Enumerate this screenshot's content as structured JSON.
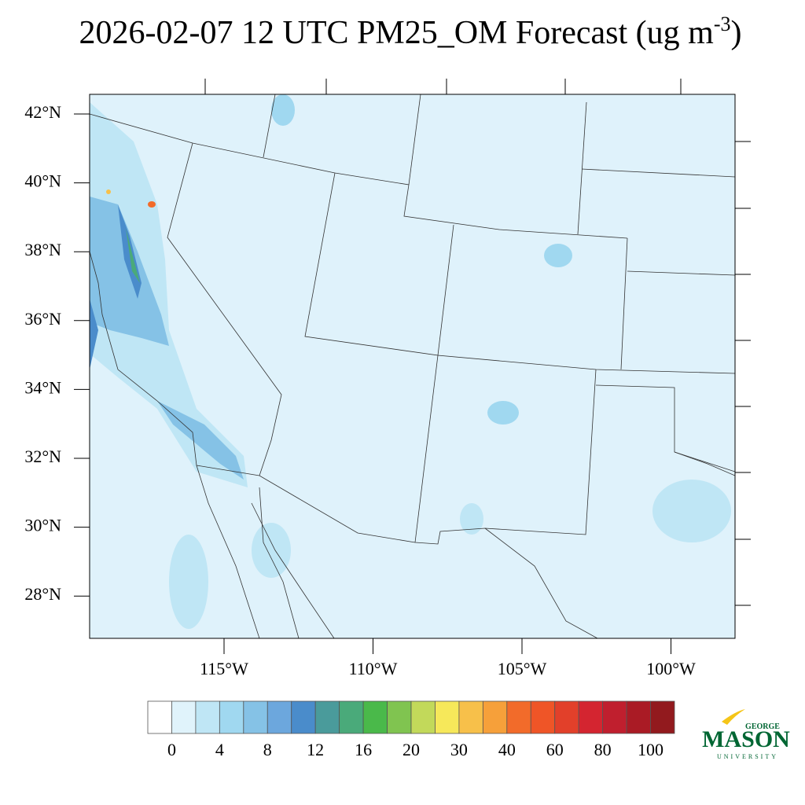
{
  "title": {
    "main": "2026-02-07 12 UTC PM25_OM Forecast (ug m",
    "superscript": "-3",
    "close": ")"
  },
  "map": {
    "lat_labels": [
      "42°N",
      "40°N",
      "38°N",
      "36°N",
      "34°N",
      "32°N",
      "30°N",
      "28°N"
    ],
    "lon_labels": [
      "115°W",
      "110°W",
      "105°W",
      "100°W"
    ]
  },
  "colorbar": {
    "colors": [
      "#ffffff",
      "#e0f3fb",
      "#bfe6f5",
      "#a0d8f0",
      "#85c2e6",
      "#6ca7dd",
      "#4a8ccb",
      "#4a9b9b",
      "#4aaa7a",
      "#4ab94a",
      "#80c450",
      "#c2d95a",
      "#f6e85a",
      "#f7c04a",
      "#f6a03a",
      "#f26b2a",
      "#ef5527",
      "#e2402a",
      "#d42530",
      "#c01f2e",
      "#aa1b25",
      "#921a1e"
    ],
    "labels": [
      "0",
      "4",
      "8",
      "12",
      "16",
      "20",
      "30",
      "40",
      "60",
      "80",
      "100"
    ]
  },
  "logo": {
    "top": "GEORGE",
    "main": "MASON",
    "bottom": "UNIVERSITY"
  }
}
